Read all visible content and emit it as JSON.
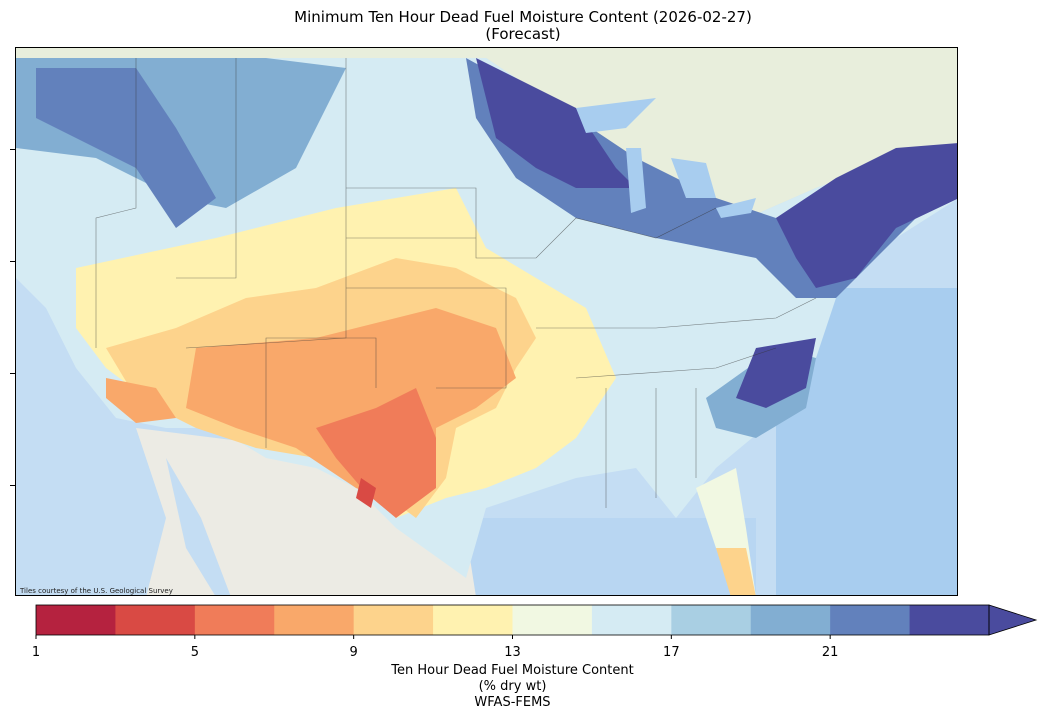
{
  "title": {
    "line1": "Minimum Ten Hour Dead Fuel Moisture Content (2026-02-27)",
    "line2": "(Forecast)"
  },
  "map": {
    "credit": "Tiles courtesy of the U.S. Geological Survey",
    "basemap_colors": {
      "ocean": "#bcd8f0",
      "land": "#e9eee0",
      "mexico": "#ece9e2"
    }
  },
  "colorbar": {
    "ticks": [
      "1",
      "5",
      "9",
      "13",
      "17",
      "21"
    ],
    "bins": [
      {
        "range": "1-3",
        "color": "#b5223f"
      },
      {
        "range": "3-5",
        "color": "#d94a44"
      },
      {
        "range": "5-7",
        "color": "#f07c59"
      },
      {
        "range": "7-9",
        "color": "#f9a86a"
      },
      {
        "range": "9-11",
        "color": "#fdd38c"
      },
      {
        "range": "11-13",
        "color": "#fff2b0"
      },
      {
        "range": "13-15",
        "color": "#f1f8e2"
      },
      {
        "range": "15-17",
        "color": "#d5ebf3"
      },
      {
        "range": "17-19",
        "color": "#a9cfe3"
      },
      {
        "range": "19-21",
        "color": "#82aed2"
      },
      {
        "range": "21-23",
        "color": "#6281bc"
      },
      {
        "range": ">23",
        "color": "#4a4b9e"
      }
    ],
    "label_line1": "Ten Hour Dead Fuel Moisture Content",
    "label_line2": "(% dry wt)",
    "label_line3": "WFAS-FEMS"
  }
}
